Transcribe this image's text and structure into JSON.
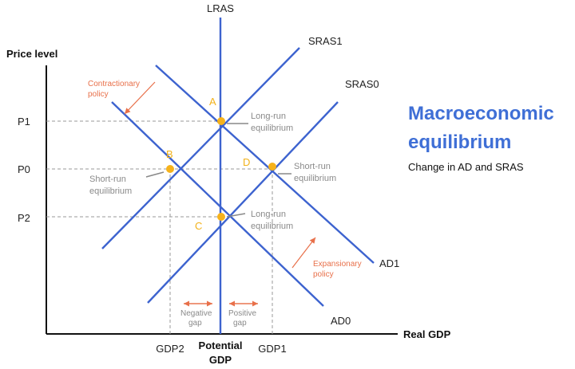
{
  "axes": {
    "y_title": "Price level",
    "x_title": "Real GDP",
    "y_ticks": [
      "P1",
      "P0",
      "P2"
    ],
    "x_ticks": [
      "GDP2",
      "GDP1"
    ],
    "potential_line1": "Potential",
    "potential_line2": "GDP"
  },
  "curves": {
    "lras": "LRAS",
    "sras1": "SRAS1",
    "sras0": "SRAS0",
    "ad1": "AD1",
    "ad0": "AD0"
  },
  "points": {
    "a": "A",
    "b": "B",
    "c": "C",
    "d": "D"
  },
  "notes": {
    "long_run_1_line1": "Long-run",
    "long_run_1_line2": "equilibrium",
    "short_run_left_line1": "Short-run",
    "short_run_left_line2": "equilibrium",
    "short_run_right_line1": "Short-run",
    "short_run_right_line2": "equilibrium",
    "long_run_2_line1": "Long-run",
    "long_run_2_line2": "equilibrium"
  },
  "policies": {
    "contractionary_line1": "Contractionary",
    "contractionary_line2": "policy",
    "expansionary_line1": "Expansionary",
    "expansionary_line2": "policy"
  },
  "gaps": {
    "negative_line1": "Negative",
    "negative_line2": "gap",
    "positive_line1": "Positive",
    "positive_line2": "gap"
  },
  "heading": {
    "title_line1": "Macroeconomic",
    "title_line2": "equilibrium",
    "subtitle": "Change in AD and SRAS"
  },
  "colors": {
    "curve": "#3d63cf",
    "point": "#f6b21b",
    "arrow": "#e8704a",
    "guide": "#999999"
  }
}
